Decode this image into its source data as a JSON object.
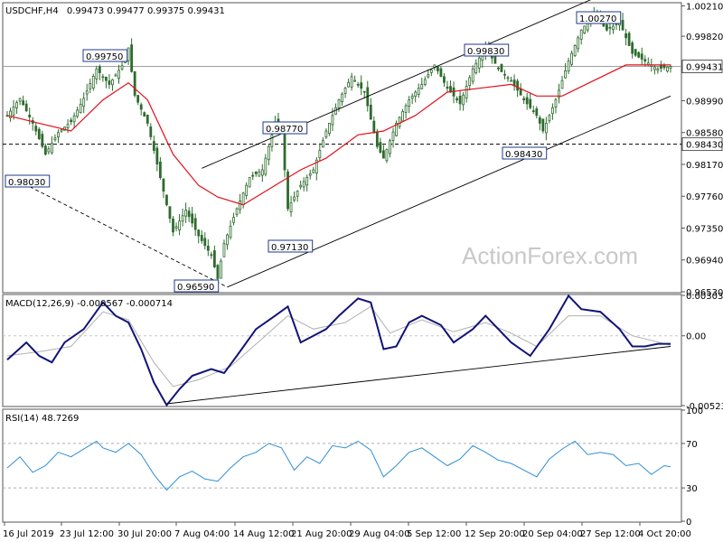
{
  "header": {
    "symbol": "USDCHF,H4",
    "ohlc": "0.99473 0.99477 0.99375 0.99431"
  },
  "watermark": "ActionForex.com",
  "colors": {
    "candle": "#2e6b2e",
    "ma": "#e0101a",
    "macd_main": "#111477",
    "macd_signal": "#b0b0b0",
    "rsi": "#2f8fd6",
    "trendline": "#000000",
    "label_border": "#1f3a8a"
  },
  "x_labels": [
    "16 Jul 2019",
    "23 Jul 12:00",
    "30 Jul 20:00",
    "7 Aug 04:00",
    "14 Aug 12:00",
    "21 Aug 20:00",
    "29 Aug 04:00",
    "5 Sep 12:00",
    "12 Sep 20:00",
    "20 Sep 04:00",
    "27 Sep 12:00",
    "4 Oct 20:00"
  ],
  "chart_data": [
    {
      "type": "candlestick",
      "title": "USDCHF,H4",
      "ylim": [
        0.9653,
        1.0024
      ],
      "y_ticks": [
        "1.00210",
        "0.99820",
        "0.99431",
        "0.98990",
        "0.98580",
        "0.98430",
        "0.98170",
        "0.97760",
        "0.97350",
        "0.96940",
        "0.96530"
      ],
      "current_price": "0.99431",
      "support_level": "0.98430",
      "annotations": [
        {
          "text": "0.98030",
          "value": 0.9803
        },
        {
          "text": "0.99750",
          "value": 0.9975
        },
        {
          "text": "0.96590",
          "value": 0.9659
        },
        {
          "text": "0.98770",
          "value": 0.9877
        },
        {
          "text": "0.97130",
          "value": 0.9713
        },
        {
          "text": "0.99830",
          "value": 0.9983
        },
        {
          "text": "0.98430",
          "value": 0.9843
        },
        {
          "text": "1.00270",
          "value": 1.0027
        }
      ],
      "close_path": [
        [
          0,
          0.988
        ],
        [
          4,
          0.9902
        ],
        [
          8,
          0.987
        ],
        [
          12,
          0.983
        ],
        [
          16,
          0.9858
        ],
        [
          20,
          0.9872
        ],
        [
          24,
          0.9902
        ],
        [
          28,
          0.994
        ],
        [
          32,
          0.992
        ],
        [
          36,
          0.9944
        ],
        [
          38,
          0.9967
        ],
        [
          40,
          0.9906
        ],
        [
          44,
          0.987
        ],
        [
          48,
          0.98
        ],
        [
          52,
          0.973
        ],
        [
          56,
          0.9758
        ],
        [
          60,
          0.9725
        ],
        [
          64,
          0.97
        ],
        [
          66,
          0.967
        ],
        [
          68,
          0.9715
        ],
        [
          72,
          0.976
        ],
        [
          76,
          0.98
        ],
        [
          80,
          0.981
        ],
        [
          84,
          0.987
        ],
        [
          86,
          0.986
        ],
        [
          88,
          0.976
        ],
        [
          92,
          0.979
        ],
        [
          96,
          0.981
        ],
        [
          100,
          0.986
        ],
        [
          104,
          0.99
        ],
        [
          108,
          0.993
        ],
        [
          112,
          0.991
        ],
        [
          116,
          0.984
        ],
        [
          118,
          0.9825
        ],
        [
          122,
          0.987
        ],
        [
          126,
          0.99
        ],
        [
          130,
          0.992
        ],
        [
          134,
          0.9945
        ],
        [
          138,
          0.9915
        ],
        [
          142,
          0.9895
        ],
        [
          146,
          0.994
        ],
        [
          150,
          0.9968
        ],
        [
          154,
          0.994
        ],
        [
          158,
          0.9925
        ],
        [
          162,
          0.99
        ],
        [
          166,
          0.988
        ],
        [
          168,
          0.986
        ],
        [
          172,
          0.99
        ],
        [
          176,
          0.995
        ],
        [
          180,
          0.999
        ],
        [
          184,
          1.001
        ],
        [
          188,
          0.999
        ],
        [
          192,
          1.0
        ],
        [
          196,
          0.996
        ],
        [
          200,
          0.995
        ],
        [
          204,
          0.994
        ],
        [
          208,
          0.9943
        ]
      ],
      "ma": [
        [
          0,
          0.988
        ],
        [
          10,
          0.987
        ],
        [
          20,
          0.986
        ],
        [
          30,
          0.99
        ],
        [
          38,
          0.9922
        ],
        [
          44,
          0.99
        ],
        [
          52,
          0.983
        ],
        [
          60,
          0.979
        ],
        [
          66,
          0.9775
        ],
        [
          74,
          0.9765
        ],
        [
          84,
          0.979
        ],
        [
          92,
          0.981
        ],
        [
          100,
          0.9825
        ],
        [
          110,
          0.9855
        ],
        [
          118,
          0.986
        ],
        [
          128,
          0.988
        ],
        [
          138,
          0.991
        ],
        [
          148,
          0.9915
        ],
        [
          158,
          0.992
        ],
        [
          166,
          0.9905
        ],
        [
          174,
          0.9905
        ],
        [
          184,
          0.9925
        ],
        [
          194,
          0.9945
        ],
        [
          208,
          0.9945
        ]
      ],
      "channel_upper": [
        [
          61,
          0.9812
        ],
        [
          192,
          1.0045
        ]
      ],
      "channel_lower": [
        [
          69,
          0.9659
        ],
        [
          208,
          0.9905
        ]
      ],
      "dashed_trend": [
        [
          0,
          0.9803
        ],
        [
          69,
          0.9659
        ]
      ]
    },
    {
      "type": "line",
      "title": "MACD(12,26,9) -0.000567 -0.000714",
      "ylim": [
        -0.005236,
        0.00303
      ],
      "y_ticks": [
        "0.00303",
        "0.00",
        "-0.005236"
      ],
      "series": [
        {
          "values": [
            [
              0,
              -0.0018
            ],
            [
              6,
              -0.0005
            ],
            [
              10,
              -0.0015
            ],
            [
              14,
              -0.002
            ],
            [
              18,
              -0.0005
            ],
            [
              24,
              0.0005
            ],
            [
              30,
              0.0025
            ],
            [
              34,
              0.0015
            ],
            [
              38,
              0.001
            ],
            [
              42,
              -0.001
            ],
            [
              46,
              -0.0035
            ],
            [
              50,
              -0.0052
            ],
            [
              54,
              -0.004
            ],
            [
              58,
              -0.003
            ],
            [
              64,
              -0.0025
            ],
            [
              68,
              -0.0028
            ],
            [
              72,
              -0.0015
            ],
            [
              78,
              0.0005
            ],
            [
              84,
              0.0015
            ],
            [
              88,
              0.0022
            ],
            [
              92,
              -0.0005
            ],
            [
              96,
              0.0
            ],
            [
              100,
              0.0005
            ],
            [
              104,
              0.0015
            ],
            [
              110,
              0.0028
            ],
            [
              114,
              0.0025
            ],
            [
              118,
              -0.001
            ],
            [
              122,
              -0.0008
            ],
            [
              126,
              0.001
            ],
            [
              130,
              0.0015
            ],
            [
              136,
              0.0008
            ],
            [
              140,
              -0.0005
            ],
            [
              146,
              0.0005
            ],
            [
              150,
              0.0015
            ],
            [
              154,
              0.0005
            ],
            [
              158,
              -0.0005
            ],
            [
              164,
              -0.0015
            ],
            [
              170,
              0.0005
            ],
            [
              176,
              0.003
            ],
            [
              180,
              0.002
            ],
            [
              186,
              0.0018
            ],
            [
              192,
              0.0005
            ],
            [
              196,
              -0.0008
            ],
            [
              200,
              -0.0008
            ],
            [
              204,
              -0.0006
            ],
            [
              208,
              -0.0006
            ]
          ]
        },
        {
          "values": [
            [
              0,
              -0.0015
            ],
            [
              10,
              -0.0012
            ],
            [
              20,
              -0.0008
            ],
            [
              30,
              0.0018
            ],
            [
              38,
              0.0012
            ],
            [
              46,
              -0.002
            ],
            [
              52,
              -0.0038
            ],
            [
              60,
              -0.0033
            ],
            [
              70,
              -0.0023
            ],
            [
              80,
              -0.0002
            ],
            [
              88,
              0.0015
            ],
            [
              96,
              0.0005
            ],
            [
              106,
              0.001
            ],
            [
              114,
              0.0022
            ],
            [
              120,
              0.0002
            ],
            [
              130,
              0.0012
            ],
            [
              140,
              0.0003
            ],
            [
              150,
              0.001
            ],
            [
              158,
              0.0002
            ],
            [
              166,
              -0.0008
            ],
            [
              176,
              0.0015
            ],
            [
              186,
              0.0015
            ],
            [
              196,
              0.0
            ],
            [
              208,
              -0.0007
            ]
          ]
        }
      ],
      "trendline": [
        [
          50,
          -0.0051
        ],
        [
          208,
          -0.0008
        ]
      ]
    },
    {
      "type": "line",
      "title": "RSI(14) 48.7269",
      "ylim": [
        0,
        100
      ],
      "y_ticks": [
        "100",
        "70",
        "30",
        "0"
      ],
      "series": [
        {
          "values": [
            [
              0,
              48
            ],
            [
              4,
              58
            ],
            [
              8,
              44
            ],
            [
              12,
              50
            ],
            [
              16,
              62
            ],
            [
              20,
              58
            ],
            [
              24,
              65
            ],
            [
              28,
              72
            ],
            [
              30,
              66
            ],
            [
              34,
              62
            ],
            [
              38,
              70
            ],
            [
              42,
              60
            ],
            [
              46,
              42
            ],
            [
              50,
              28
            ],
            [
              54,
              40
            ],
            [
              58,
              45
            ],
            [
              62,
              38
            ],
            [
              66,
              36
            ],
            [
              70,
              48
            ],
            [
              74,
              58
            ],
            [
              78,
              62
            ],
            [
              82,
              70
            ],
            [
              86,
              66
            ],
            [
              90,
              46
            ],
            [
              94,
              58
            ],
            [
              98,
              52
            ],
            [
              102,
              68
            ],
            [
              106,
              66
            ],
            [
              110,
              72
            ],
            [
              114,
              64
            ],
            [
              118,
              40
            ],
            [
              122,
              50
            ],
            [
              126,
              62
            ],
            [
              130,
              66
            ],
            [
              134,
              58
            ],
            [
              138,
              50
            ],
            [
              142,
              56
            ],
            [
              146,
              68
            ],
            [
              150,
              62
            ],
            [
              154,
              55
            ],
            [
              158,
              52
            ],
            [
              162,
              46
            ],
            [
              166,
              40
            ],
            [
              170,
              56
            ],
            [
              174,
              65
            ],
            [
              178,
              72
            ],
            [
              182,
              60
            ],
            [
              186,
              62
            ],
            [
              190,
              60
            ],
            [
              194,
              50
            ],
            [
              198,
              52
            ],
            [
              202,
              42
            ],
            [
              206,
              50
            ],
            [
              208,
              49
            ]
          ]
        }
      ]
    }
  ]
}
